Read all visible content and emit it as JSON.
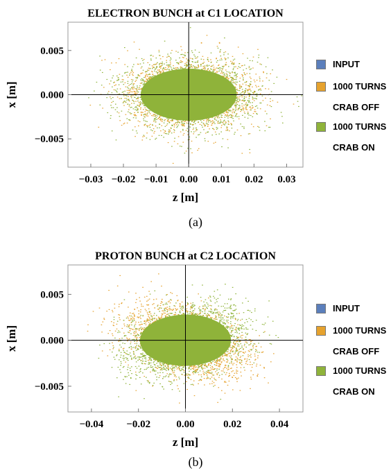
{
  "chart_data": [
    {
      "type": "scatter",
      "title": "ELECTRON BUNCH at C1 LOCATION",
      "xlabel": "z [m]",
      "ylabel": "x [m]",
      "xlim": [
        -0.037,
        0.035
      ],
      "ylim": [
        -0.0082,
        0.0082
      ],
      "xticks": [
        -0.03,
        -0.02,
        -0.01,
        0.0,
        0.01,
        0.02,
        0.03
      ],
      "xtick_labels": [
        "−0.03",
        "−0.02",
        "−0.01",
        "0.00",
        "0.01",
        "0.02",
        "0.03"
      ],
      "yticks": [
        -0.005,
        0.0,
        0.005
      ],
      "ytick_labels": [
        "−0.005",
        "0.000",
        "0.005"
      ],
      "grid": false,
      "legend": "right",
      "series": [
        {
          "name": "INPUT",
          "color": "#5b7fbc",
          "center": [
            0.0,
            0.0
          ],
          "sigma": [
            0.009,
            0.0018
          ]
        },
        {
          "name": "1000 TURNS CRAB OFF",
          "color": "#e6a22e",
          "center": [
            0.0,
            0.0
          ],
          "sigma": [
            0.0092,
            0.0019
          ]
        },
        {
          "name": "1000 TURNS CRAB ON",
          "color": "#8fb33a",
          "center": [
            0.0,
            0.0
          ],
          "sigma": [
            0.0095,
            0.0019
          ]
        }
      ],
      "caption": "(a)"
    },
    {
      "type": "scatter",
      "title": "PROTON BUNCH at C2 LOCATION",
      "xlabel": "z [m]",
      "ylabel": "x [m]",
      "xlim": [
        -0.05,
        0.05
      ],
      "ylim": [
        -0.0078,
        0.0082
      ],
      "xticks": [
        -0.04,
        -0.02,
        0.0,
        0.02,
        0.04
      ],
      "xtick_labels": [
        "−0.04",
        "−0.02",
        "0.00",
        "0.02",
        "0.04"
      ],
      "yticks": [
        -0.005,
        0.0,
        0.005
      ],
      "ytick_labels": [
        "−0.005",
        "0.000",
        "0.005"
      ],
      "grid": false,
      "legend": "right",
      "series": [
        {
          "name": "INPUT",
          "color": "#5b7fbc",
          "center": [
            0.0,
            0.0
          ],
          "sigma": [
            0.012,
            0.0017
          ]
        },
        {
          "name": "1000 TURNS CRAB OFF",
          "color": "#e6a22e",
          "center": [
            0.0,
            0.0
          ],
          "sigma": [
            0.0125,
            0.0018
          ],
          "tilt": -0.06
        },
        {
          "name": "1000 TURNS CRAB ON",
          "color": "#8fb33a",
          "center": [
            0.0,
            0.0
          ],
          "sigma": [
            0.0125,
            0.0018
          ],
          "tilt": 0.05
        }
      ],
      "caption": "(b)"
    }
  ],
  "legend": {
    "input": "INPUT",
    "crab_off_line1": "1000 TURNS",
    "crab_off_line2": "CRAB OFF",
    "crab_on_line1": "1000 TURNS",
    "crab_on_line2": "CRAB ON"
  }
}
